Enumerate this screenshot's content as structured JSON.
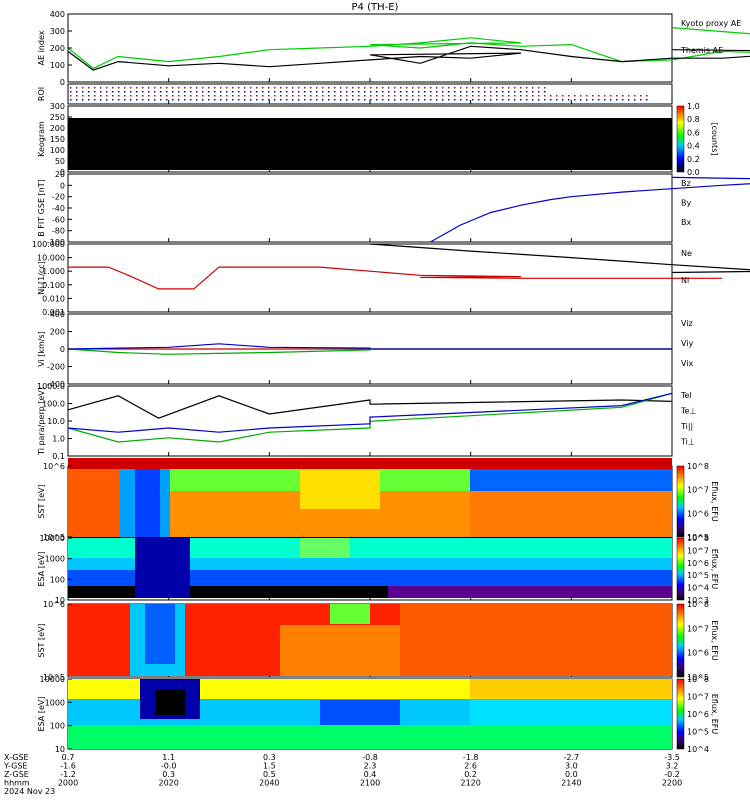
{
  "title": "P4 (TH-E)",
  "footer": {
    "row_labels": [
      "X-GSE",
      "Y-GSE",
      "Z-GSE",
      "hhmm",
      "2024 Nov 23"
    ],
    "columns": [
      {
        "x": "0.7",
        "y": "-1.6",
        "z": "-1.2",
        "t": "2000"
      },
      {
        "x": "1.1",
        "y": "-0.0",
        "z": "0.3",
        "t": "2020"
      },
      {
        "x": "0.3",
        "y": "1.5",
        "z": "0.5",
        "t": "2040"
      },
      {
        "x": "-0.8",
        "y": "2.3",
        "z": "0.4",
        "t": "2100"
      },
      {
        "x": "-1.8",
        "y": "2.6",
        "z": "0.2",
        "t": "2120"
      },
      {
        "x": "-2.7",
        "y": "3.0",
        "z": "0.0",
        "t": "2140"
      },
      {
        "x": "-3.5",
        "y": "3.2",
        "z": "-0.2",
        "t": "2200"
      }
    ]
  },
  "chart_data": [
    {
      "type": "line",
      "ylabel": "AE index",
      "yticks": [
        "400",
        "300",
        "200",
        "100",
        "0"
      ],
      "ylim": [
        0,
        400
      ],
      "x": [
        2000,
        2005,
        2010,
        2020,
        2030,
        2040,
        2050,
        2060,
        2070,
        2080,
        2090,
        2100,
        2110,
        2120,
        2130,
        2140,
        2150,
        2160,
        2170,
        2180,
        2190,
        2200
      ],
      "series": [
        {
          "name": "Kyoto proxy AE",
          "color": "#00cc00",
          "values": [
            200,
            80,
            150,
            120,
            150,
            190,
            200,
            210,
            230,
            260,
            230,
            220,
            200,
            230,
            210,
            220,
            120,
            130,
            180,
            170,
            250,
            320
          ]
        },
        {
          "name": "Themis AE",
          "color": "#000000",
          "values": [
            180,
            70,
            120,
            95,
            110,
            90,
            110,
            130,
            150,
            140,
            170,
            160,
            110,
            210,
            190,
            150,
            120,
            140,
            140,
            160,
            180,
            190
          ]
        }
      ]
    },
    {
      "type": "table",
      "ylabel": "ROI"
    },
    {
      "type": "heatmap",
      "ylabel": "Keogram",
      "yticks": [
        "300",
        "250",
        "200",
        "150",
        "100",
        "50",
        "0"
      ],
      "colorbar": {
        "label": "[counts]",
        "ticks": [
          "1.0",
          "0.8",
          "0.6",
          "0.4",
          "0.2",
          "0.0"
        ]
      }
    },
    {
      "type": "line",
      "ylabel": "B FIT GSE [nT]",
      "yticks": [
        "20",
        "0",
        "-20",
        "-40",
        "-60",
        "-80",
        "-100"
      ],
      "ylim": [
        -100,
        20
      ],
      "legend": [
        "Bz",
        "By",
        "Bx"
      ],
      "series": [
        {
          "name": "Bx",
          "color": "#0000cc",
          "x": [
            2112,
            2118,
            2124,
            2130,
            2136,
            2140,
            2150,
            2160,
            2170,
            2180,
            2190,
            2200
          ],
          "values": [
            -100,
            -70,
            -48,
            -35,
            -25,
            -20,
            -12,
            -6,
            0,
            5,
            10,
            14
          ]
        }
      ]
    },
    {
      "type": "line",
      "ylabel": "Ni [1/cc]",
      "yticks": [
        "100.000",
        "10.000",
        "1.000",
        "0.100",
        "0.010",
        "0.001"
      ],
      "ylim": [
        0.001,
        100
      ],
      "legend": [
        "Ne",
        "Ni"
      ],
      "series": [
        {
          "name": "Ne",
          "color": "#cc0000",
          "x": [
            2000,
            2008,
            2012,
            2018,
            2025,
            2030,
            2037,
            2040,
            2050,
            2070,
            2090,
            2110,
            2130,
            2150,
            2170,
            2200
          ],
          "values": [
            2.0,
            2.0,
            0.5,
            0.05,
            0.05,
            2.0,
            2.0,
            2.0,
            2.0,
            0.5,
            0.4,
            0.35,
            0.3,
            0.3,
            0.3,
            0.3
          ]
        },
        {
          "name": "Ni",
          "color": "#000000",
          "x": [
            2100,
            2120,
            2140,
            2160,
            2180,
            2200
          ],
          "values": [
            100,
            30,
            10,
            3,
            1,
            0.8
          ]
        }
      ]
    },
    {
      "type": "line",
      "ylabel": "Vi [km/s]",
      "yticks": [
        "400",
        "200",
        "0",
        "-200",
        "-400"
      ],
      "ylim": [
        -400,
        400
      ],
      "legend": [
        "Viz",
        "Viy",
        "Vix"
      ],
      "series": [
        {
          "name": "Viz",
          "color": "#cc0000",
          "x": [
            2000,
            2200
          ],
          "values": [
            0,
            0
          ]
        },
        {
          "name": "Viy",
          "color": "#00aa00",
          "x": [
            2000,
            2010,
            2020,
            2030,
            2040,
            2060,
            2100,
            2150,
            2200
          ],
          "values": [
            0,
            -40,
            -60,
            -50,
            -40,
            -10,
            0,
            0,
            0
          ]
        },
        {
          "name": "Vix",
          "color": "#0000cc",
          "x": [
            2000,
            2010,
            2020,
            2030,
            2040,
            2060,
            2100,
            2150,
            2200
          ],
          "values": [
            0,
            10,
            20,
            60,
            20,
            10,
            0,
            0,
            0
          ]
        }
      ]
    },
    {
      "type": "line",
      "ylabel": "Ti para/perp [eV]",
      "yticks": [
        "1000.0",
        "100.0",
        "10.0",
        "1.0",
        "0.1"
      ],
      "ylim": [
        0.1,
        10000
      ],
      "legend": [
        "Tel",
        "Te⊥",
        "Ti||",
        "Ti⊥"
      ],
      "series": [
        {
          "name": "Tel",
          "color": "#000000",
          "x": [
            2000,
            2010,
            2018,
            2030,
            2040,
            2060,
            2100,
            2150,
            2200
          ],
          "values": [
            200,
            2000,
            50,
            2000,
            100,
            1000,
            500,
            1000,
            800
          ]
        },
        {
          "name": "Ti||",
          "color": "#00aa00",
          "x": [
            2000,
            2010,
            2020,
            2030,
            2040,
            2060,
            2100,
            2150,
            2200
          ],
          "values": [
            10,
            1,
            2,
            1,
            5,
            10,
            30,
            300,
            3000
          ]
        },
        {
          "name": "Ti⊥",
          "color": "#0000cc",
          "x": [
            2000,
            2010,
            2020,
            2030,
            2040,
            2060,
            2100,
            2150,
            2200
          ],
          "values": [
            10,
            5,
            10,
            5,
            10,
            20,
            60,
            400,
            3000
          ]
        }
      ]
    },
    {
      "type": "heatmap",
      "ylabel": "SST [eV]",
      "yticks": [
        "10^6",
        "10^5"
      ],
      "colorbar": {
        "label": "Eflux, EFU",
        "ticks": [
          "10^8",
          "10^7",
          "10^6",
          "10^5"
        ]
      }
    },
    {
      "type": "heatmap",
      "ylabel": "ESA [eV]",
      "yticks": [
        "10000",
        "1000",
        "100",
        "10"
      ],
      "colorbar": {
        "label": "Eflux, EFU",
        "ticks": [
          "10^8",
          "10^7",
          "10^6",
          "10^5",
          "10^4",
          "10^3"
        ]
      }
    },
    {
      "type": "heatmap",
      "ylabel": "SST [eV]",
      "yticks": [
        "10^6",
        "10^5"
      ],
      "colorbar": {
        "label": "Eflux, EFU",
        "ticks": [
          "10^8",
          "10^7",
          "10^6",
          "10^5"
        ]
      }
    },
    {
      "type": "heatmap",
      "ylabel": "ESA [eV]",
      "yticks": [
        "10000",
        "1000",
        "100",
        "10"
      ],
      "colorbar": {
        "label": "Eflux, EFU",
        "ticks": [
          "10^8",
          "10^7",
          "10^6",
          "10^5",
          "10^4"
        ]
      }
    }
  ]
}
